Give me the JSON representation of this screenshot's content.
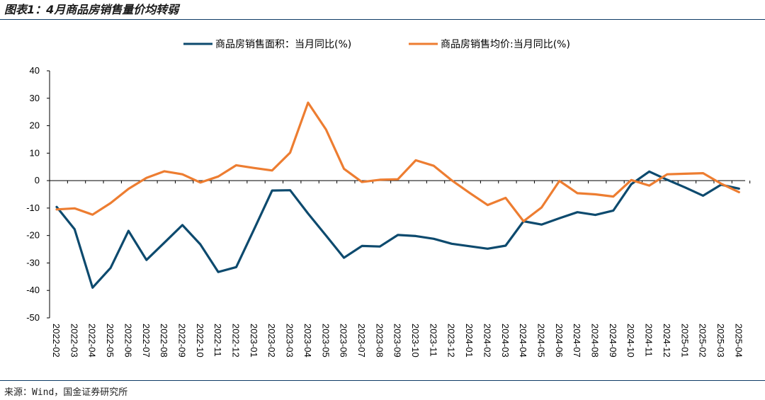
{
  "header": {
    "title": "图表1：4月商品房销售量价均转弱"
  },
  "footer": {
    "source": "来源：Wind，国金证券研究所"
  },
  "colors": {
    "area_series": "#0d4a6e",
    "price_series": "#ed7d31",
    "rule": "#0d3b66"
  },
  "chart_data": {
    "type": "line",
    "title": "",
    "xlabel": "",
    "ylabel": "",
    "ylim": [
      -50,
      40
    ],
    "yticks": [
      40,
      30,
      20,
      10,
      0,
      -10,
      -20,
      -30,
      -40,
      -50
    ],
    "legend_position": "top",
    "grid": false,
    "categories": [
      "2022-02",
      "2022-03",
      "2022-04",
      "2022-05",
      "2022-06",
      "2022-07",
      "2022-08",
      "2022-09",
      "2022-10",
      "2022-11",
      "2022-12",
      "2023-01",
      "2023-02",
      "2023-03",
      "2023-04",
      "2023-05",
      "2023-06",
      "2023-07",
      "2023-08",
      "2023-09",
      "2023-10",
      "2023-11",
      "2023-12",
      "2024-01",
      "2024-02",
      "2024-03",
      "2024-04",
      "2024-05",
      "2024-06",
      "2024-07",
      "2024-08",
      "2024-09",
      "2024-10",
      "2024-11",
      "2024-12",
      "2025-01",
      "2025-02",
      "2025-03",
      "2025-04"
    ],
    "series": [
      {
        "name": "商品房销售面积：当月同比(%)",
        "color": "#0d4a6e",
        "values": [
          -9.6,
          -17.7,
          -39.0,
          -31.8,
          -18.3,
          -28.9,
          -22.6,
          -16.2,
          -23.2,
          -33.3,
          -31.5,
          -17.6,
          -3.6,
          -3.5,
          -12.0,
          -20.0,
          -28.1,
          -23.8,
          -24.0,
          -19.8,
          -20.2,
          -21.2,
          -23.0,
          -23.9,
          -24.8,
          -23.7,
          -14.8,
          -16.0,
          -13.7,
          -11.5,
          -12.5,
          -10.9,
          -1.3,
          3.3,
          0.3,
          -2.5,
          -5.5,
          -1.5,
          -2.9
        ]
      },
      {
        "name": "商品房销售均价:当月同比(%)",
        "color": "#ed7d31",
        "values": [
          -10.5,
          -10.1,
          -12.4,
          -8.2,
          -3.0,
          1.0,
          3.4,
          2.3,
          -0.7,
          1.5,
          5.6,
          4.6,
          3.7,
          10.2,
          28.4,
          18.6,
          4.3,
          -0.5,
          0.3,
          0.5,
          7.4,
          5.4,
          0.1,
          -4.5,
          -8.9,
          -6.3,
          -14.8,
          -9.8,
          -0.1,
          -4.6,
          -5.0,
          -5.8,
          0.2,
          -1.8,
          2.3,
          2.5,
          2.7,
          -1.1,
          -4.2
        ]
      }
    ]
  }
}
